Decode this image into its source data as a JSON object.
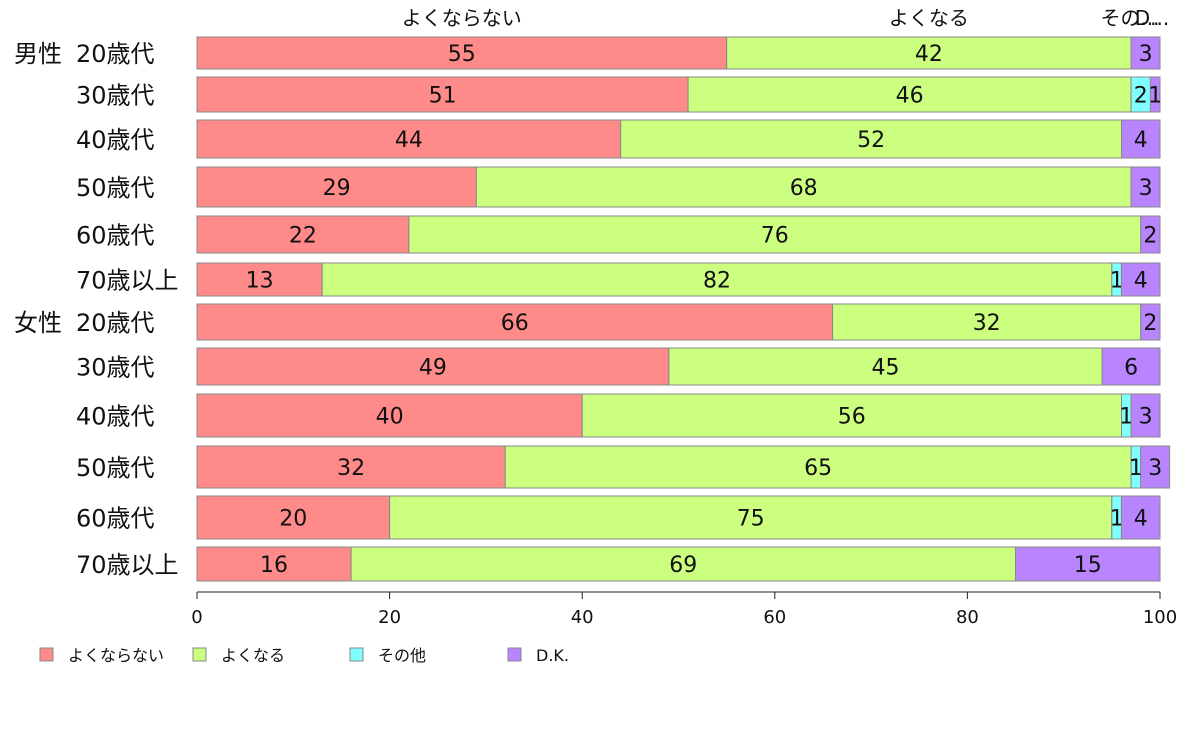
{
  "chart_data": {
    "type": "bar",
    "orientation": "horizontal",
    "stacked": true,
    "xlim": [
      0,
      100
    ],
    "x_ticks": [
      "0",
      "20",
      "40",
      "60",
      "80",
      "100"
    ],
    "grid": false,
    "legend_position": "bottom-left",
    "top_labels": [
      "よくならない",
      "よくなる",
      "その...",
      "D..."
    ],
    "groups": [
      {
        "label": "男性",
        "rows": [
          0,
          6
        ]
      },
      {
        "label": "女性",
        "rows": [
          6,
          12
        ]
      }
    ],
    "categories": [
      "20歳代",
      "30歳代",
      "40歳代",
      "50歳代",
      "60歳代",
      "70歳以上",
      "20歳代",
      "30歳代",
      "40歳代",
      "50歳代",
      "60歳代",
      "70歳以上"
    ],
    "series": [
      {
        "name": "よくならない",
        "color": "#ff8a8a",
        "values": [
          55,
          51,
          44,
          29,
          22,
          13,
          66,
          49,
          40,
          32,
          20,
          16
        ]
      },
      {
        "name": "よくなる",
        "color": "#ccff80",
        "values": [
          42,
          46,
          52,
          68,
          76,
          82,
          32,
          45,
          56,
          65,
          75,
          69
        ]
      },
      {
        "name": "その他",
        "color": "#80ffff",
        "values": [
          0,
          2,
          0,
          0,
          0,
          1,
          0,
          0,
          1,
          1,
          1,
          0
        ]
      },
      {
        "name": "D.K.",
        "color": "#b985ff",
        "values": [
          3,
          1,
          4,
          3,
          2,
          4,
          2,
          6,
          3,
          3,
          4,
          15
        ]
      }
    ]
  }
}
